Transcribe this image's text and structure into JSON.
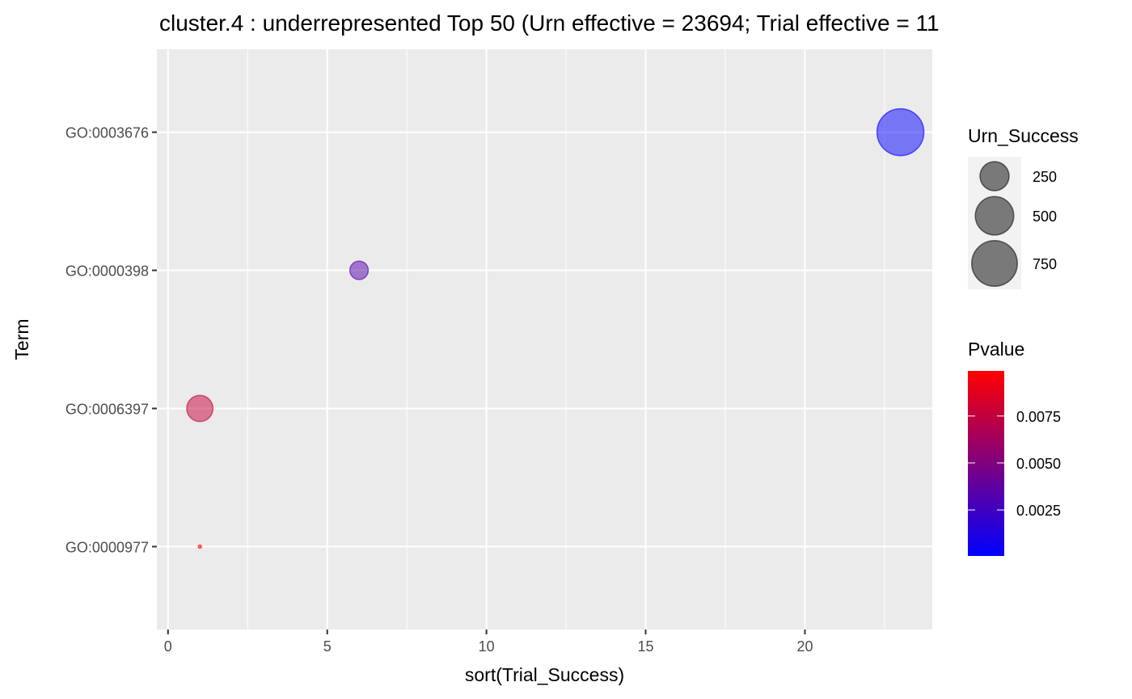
{
  "chart_data": {
    "type": "scatter",
    "title": "cluster.4 : underrepresented Top 50 (Urn effective = 23694; Trial effective = 11",
    "xlabel": "sort(Trial_Success)",
    "ylabel": "Term",
    "xlim": [
      -0.35,
      24.0
    ],
    "x_ticks": [
      0,
      5,
      10,
      15,
      20
    ],
    "x_tick_labels": [
      "0",
      "5",
      "10",
      "15",
      "20"
    ],
    "categories": [
      "GO:0003676",
      "GO:0000398",
      "GO:0006397",
      "GO:0000977"
    ],
    "points": [
      {
        "term": "GO:0003676",
        "x": 23,
        "urn_success": 800,
        "pvalue": 0.0001
      },
      {
        "term": "GO:0000398",
        "x": 6,
        "urn_success": 70,
        "pvalue": 0.0033
      },
      {
        "term": "GO:0006397",
        "x": 1,
        "urn_success": 190,
        "pvalue": 0.0077
      },
      {
        "term": "GO:0000977",
        "x": 1,
        "urn_success": 2,
        "pvalue": 0.0099
      }
    ],
    "size_legend": {
      "title": "Urn_Success",
      "values": [
        250,
        500,
        750
      ],
      "labels": [
        "250",
        "500",
        "750"
      ]
    },
    "color_legend": {
      "title": "Pvalue",
      "range": [
        5e-05,
        0.0099
      ],
      "ticks": [
        0.0025,
        0.005,
        0.0075
      ],
      "tick_labels": [
        "0.0025",
        "0.0050",
        "0.0075"
      ],
      "low_color": "#0000ff",
      "high_color": "#ff0000"
    },
    "grid": true,
    "panel_background": "#ebebeb",
    "legend_position": "right"
  }
}
